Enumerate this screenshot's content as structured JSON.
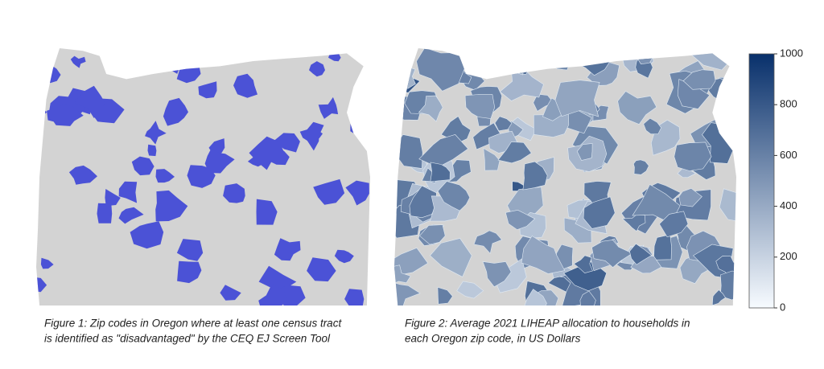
{
  "figures": [
    {
      "caption": [
        "Figure 1: Zip codes in Oregon where at least one census tract",
        "is identified as \"disadvantaged\" by the CEQ EJ Screen Tool"
      ],
      "highlight_color": "#4b52d6",
      "background_color": "#d3d3d3"
    },
    {
      "caption": [
        "Figure 2: Average 2021 LIHEAP allocation to households in",
        "each Oregon zip code, in US Dollars"
      ],
      "background_color": "#d3d3d3"
    }
  ],
  "colorbar": {
    "lim": [
      0,
      1000
    ],
    "ticks": [
      0,
      200,
      400,
      600,
      800,
      1000
    ],
    "colors": [
      "#f7fbff",
      "#08306b"
    ]
  }
}
